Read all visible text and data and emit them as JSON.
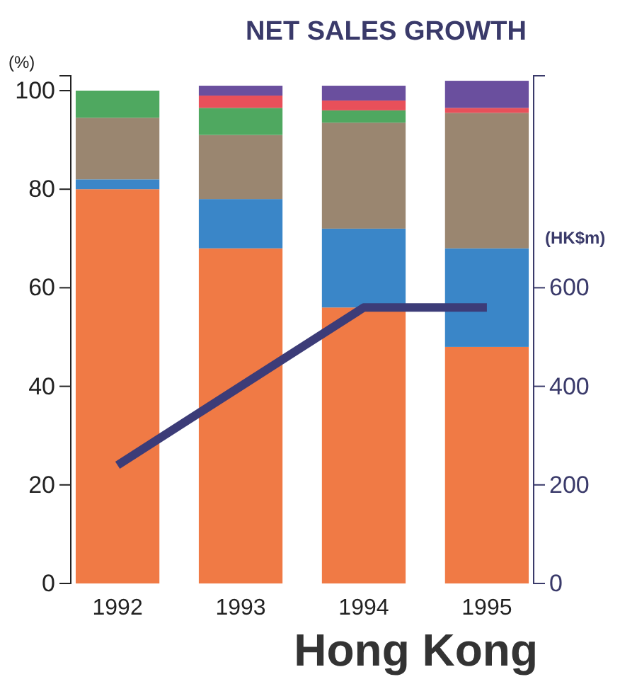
{
  "chart_data": {
    "type": "bar",
    "title": "NET SALES GROWTH",
    "subtitle": "Hong Kong",
    "ylabel": "(%)",
    "y2label": "(HK$m)",
    "categories": [
      "1992",
      "1993",
      "1994",
      "1995"
    ],
    "stacked": true,
    "grid": false,
    "ylim": [
      0,
      103
    ],
    "yticks": [
      0,
      20,
      40,
      60,
      80,
      100
    ],
    "y2lim": [
      0,
      1030
    ],
    "y2ticks": [
      0,
      200,
      400,
      600
    ],
    "series": [
      {
        "color": "#f07a45",
        "values": [
          80,
          68,
          56,
          48
        ]
      },
      {
        "color": "#3a86c8",
        "values": [
          2,
          10,
          16,
          20
        ]
      },
      {
        "color": "#9a8670",
        "values": [
          12.5,
          13,
          21.5,
          27.5
        ]
      },
      {
        "color": "#4fa860",
        "values": [
          5.5,
          5.5,
          2.5,
          0
        ]
      },
      {
        "color": "#e8505a",
        "values": [
          0,
          2.5,
          2,
          1
        ]
      },
      {
        "color": "#6a4f9e",
        "values": [
          0,
          2,
          3,
          5.5
        ]
      },
      {
        "type": "line",
        "axis": "y2",
        "color": "#3c3c78",
        "values": [
          240,
          400,
          560,
          560
        ]
      }
    ]
  }
}
